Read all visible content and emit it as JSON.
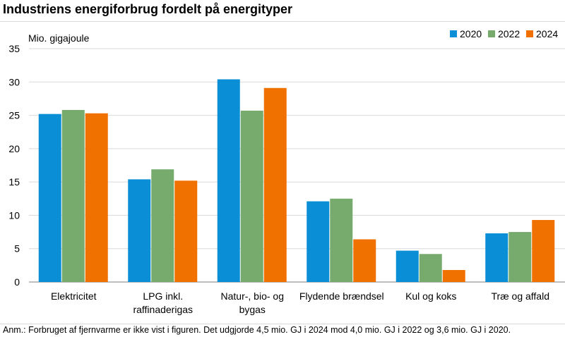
{
  "title": "Industriens energiforbrug fordelt på energityper",
  "note": "Anm.: Forbruget af fjernvarme er ikke vist i figuren. Det udgjorde 4,5 mio. GJ i 2024 mod 4,0 mio. GJ i 2022 og 3,6 mio. GJ i 2020.",
  "chart_data": {
    "type": "bar",
    "ylabel": "Mio. gigajoule",
    "ylim": [
      0,
      35
    ],
    "yticks": [
      "0",
      "5",
      "10",
      "15",
      "20",
      "25",
      "30",
      "35"
    ],
    "grid": true,
    "legend_position": "top-right",
    "categories": [
      [
        "Elektricitet"
      ],
      [
        "LPG inkl.",
        "raffinaderigas"
      ],
      [
        "Natur-, bio- og",
        "bygas"
      ],
      [
        "Flydende brændsel"
      ],
      [
        "Kul og koks"
      ],
      [
        "Træ og affald"
      ]
    ],
    "series": [
      {
        "name": "2020",
        "color": "#0a8fd6",
        "values": [
          25.2,
          15.4,
          30.4,
          12.1,
          4.7,
          7.3
        ]
      },
      {
        "name": "2022",
        "color": "#77ab6e",
        "values": [
          25.8,
          16.9,
          25.7,
          12.5,
          4.2,
          7.5
        ]
      },
      {
        "name": "2024",
        "color": "#f07000",
        "values": [
          25.3,
          15.2,
          29.1,
          6.4,
          1.8,
          9.3
        ]
      }
    ]
  }
}
